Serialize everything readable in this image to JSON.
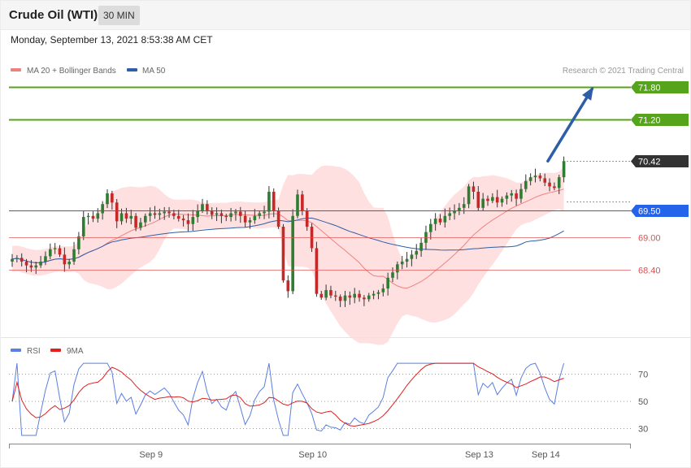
{
  "header": {
    "title": "Crude Oil (WTI)",
    "timeframe": "30 MIN"
  },
  "timestamp": "Monday, September 13, 2021 8:53:38 AM CET",
  "credit": "Research © 2021 Trading Central",
  "colors": {
    "ma20": "#f08080",
    "ma50": "#2e5ea8",
    "band_fill": "#ffdada",
    "up_candle": "#2e7d32",
    "down_candle": "#c62828",
    "resistance": "#55a41c",
    "pivot": "#2563eb",
    "support": "#e05050",
    "arrow": "#2e5ea8",
    "rsi": "#5b7fe0",
    "rsi_ma": "#e02020",
    "last_price_bg": "#333333"
  },
  "chart_data": [
    {
      "type": "candlestick",
      "title": "Crude Oil (WTI)",
      "legend": [
        {
          "name": "MA 20 + Bollinger Bands",
          "color": "#f08080"
        },
        {
          "name": "MA 50",
          "color": "#2e5ea8"
        }
      ],
      "legend_placement": "top-left",
      "x_labels": [
        "Sep 9",
        "Sep 10",
        "Sep 13",
        "Sep 14"
      ],
      "x_label_bar_index": [
        28,
        62,
        97,
        111
      ],
      "ylim": [
        67.1,
        72.05
      ],
      "levels": [
        {
          "label": "71.80",
          "value": 71.8,
          "kind": "resistance"
        },
        {
          "label": "71.20",
          "value": 71.2,
          "kind": "resistance"
        },
        {
          "label": "70.42",
          "value": 70.42,
          "kind": "last"
        },
        {
          "label": "69.50",
          "value": 69.5,
          "kind": "pivot"
        },
        {
          "label": "69.00",
          "value": 69.0,
          "kind": "support"
        },
        {
          "label": "68.40",
          "value": 68.4,
          "kind": "support"
        }
      ],
      "target_arrow": {
        "from_bar": 114,
        "from_value": 70.42,
        "to_bar": 124,
        "to_value": 71.78
      },
      "closes": [
        68.6,
        68.62,
        68.55,
        68.48,
        68.44,
        68.48,
        68.55,
        68.65,
        68.78,
        68.8,
        68.68,
        68.5,
        68.55,
        68.78,
        69.02,
        69.38,
        69.4,
        69.35,
        69.45,
        69.62,
        69.82,
        69.65,
        69.3,
        69.45,
        69.35,
        69.4,
        69.18,
        69.28,
        69.4,
        69.45,
        69.42,
        69.45,
        69.48,
        69.45,
        69.4,
        69.35,
        69.32,
        69.25,
        69.38,
        69.5,
        69.62,
        69.5,
        69.42,
        69.45,
        69.4,
        69.38,
        69.45,
        69.48,
        69.4,
        69.28,
        69.32,
        69.4,
        69.45,
        69.48,
        69.85,
        69.5,
        69.2,
        68.2,
        68.0,
        69.4,
        69.8,
        69.5,
        69.2,
        68.8,
        67.95,
        67.88,
        68.02,
        67.92,
        67.9,
        67.82,
        67.92,
        67.88,
        67.95,
        67.88,
        67.85,
        67.92,
        67.95,
        67.98,
        68.05,
        68.25,
        68.35,
        68.5,
        68.55,
        68.6,
        68.68,
        68.75,
        68.9,
        69.1,
        69.25,
        69.35,
        69.28,
        69.4,
        69.45,
        69.5,
        69.55,
        69.62,
        69.95,
        69.85,
        69.55,
        69.72,
        69.68,
        69.75,
        69.65,
        69.72,
        69.78,
        69.82,
        69.72,
        69.9,
        70.05,
        70.12,
        70.15,
        70.1,
        70.02,
        69.95,
        69.92,
        70.12,
        70.42
      ],
      "rsi": {
        "legend": [
          {
            "name": "RSI",
            "color": "#5b7fe0"
          },
          {
            "name": "9MA",
            "color": "#e02020"
          }
        ],
        "ylim": [
          20,
          80
        ],
        "ticks": [
          "70",
          "50",
          "30"
        ],
        "tick_values": [
          70,
          50,
          30
        ]
      }
    }
  ]
}
